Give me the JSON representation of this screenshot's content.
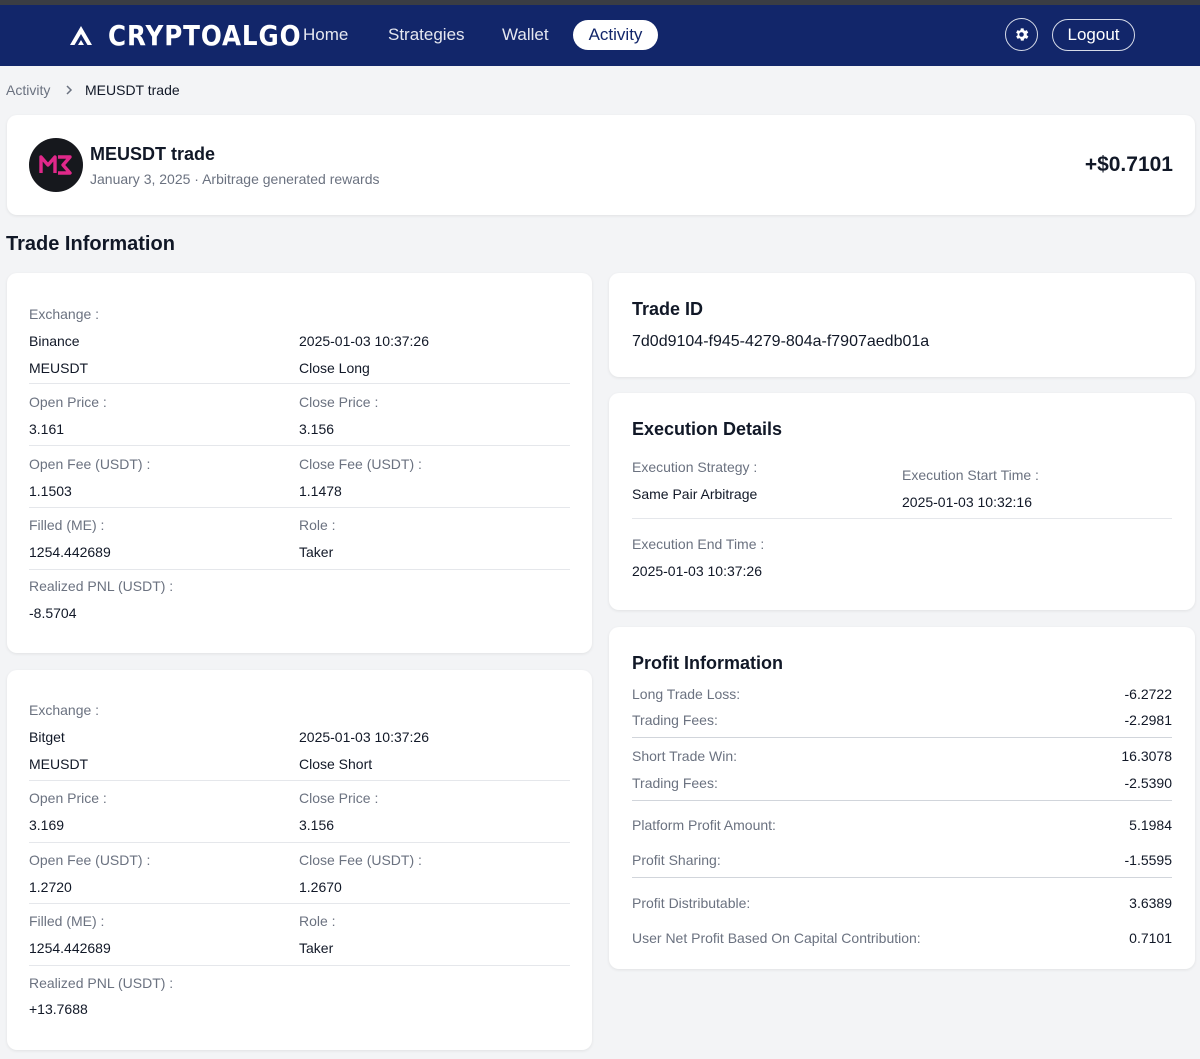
{
  "app": {
    "name": "CRYPTOALGO"
  },
  "nav": {
    "home": "Home",
    "strategies": "Strategies",
    "wallet": "Wallet",
    "activity": "Activity",
    "logout": "Logout"
  },
  "breadcrumb": {
    "parent": "Activity",
    "current": "MEUSDT trade"
  },
  "trade_header": {
    "title": "MEUSDT trade",
    "subtitle": "January 3, 2025 · Arbitrage generated rewards",
    "amount": "+$0.7101"
  },
  "section_title": "Trade Information",
  "labels": {
    "exchange": "Exchange :",
    "open_price": "Open Price :",
    "close_price": "Close Price :",
    "open_fee": "Open Fee (USDT) :",
    "close_fee": "Close Fee (USDT) :",
    "filled": "Filled (ME) :",
    "role": "Role :",
    "realized_pnl": "Realized PNL (USDT) :"
  },
  "legs": [
    {
      "exchange": "Binance",
      "datetime": "2025-01-03 10:37:26",
      "pair": "MEUSDT",
      "action": "Close Long",
      "open_price": "3.161",
      "close_price": "3.156",
      "open_fee": "1.1503",
      "close_fee": "1.1478",
      "filled": "1254.442689",
      "role": "Taker",
      "realized_pnl": "-8.5704"
    },
    {
      "exchange": "Bitget",
      "datetime": "2025-01-03 10:37:26",
      "pair": "MEUSDT",
      "action": "Close Short",
      "open_price": "3.169",
      "close_price": "3.156",
      "open_fee": "1.2720",
      "close_fee": "1.2670",
      "filled": "1254.442689",
      "role": "Taker",
      "realized_pnl": "+13.7688"
    }
  ],
  "trade_id": {
    "title": "Trade ID",
    "value": "7d0d9104-f945-4279-804a-f7907aedb01a"
  },
  "execution": {
    "title": "Execution Details",
    "strategy_label": "Execution Strategy :",
    "strategy": "Same Pair Arbitrage",
    "start_label": "Execution Start Time :",
    "start": "2025-01-03 10:32:16",
    "end_label": "Execution End Time :",
    "end": "2025-01-03 10:37:26"
  },
  "profit": {
    "title": "Profit Information",
    "rows": [
      {
        "label": "Long Trade Loss:",
        "value": "-6.2722"
      },
      {
        "label": "Trading Fees:",
        "value": "-2.2981"
      },
      {
        "label": "Short Trade Win:",
        "value": "16.3078"
      },
      {
        "label": "Trading Fees:",
        "value": "-2.5390"
      },
      {
        "label": "Platform Profit Amount:",
        "value": "5.1984"
      },
      {
        "label": "Profit Sharing:",
        "value": "-1.5595"
      },
      {
        "label": "Profit Distributable:",
        "value": "3.6389"
      },
      {
        "label": "User Net Profit Based On Capital Contribution:",
        "value": "0.7101"
      }
    ]
  },
  "colors": {
    "navbar": "#12266a",
    "background": "#f3f4f6",
    "accent": "#e0288a"
  }
}
